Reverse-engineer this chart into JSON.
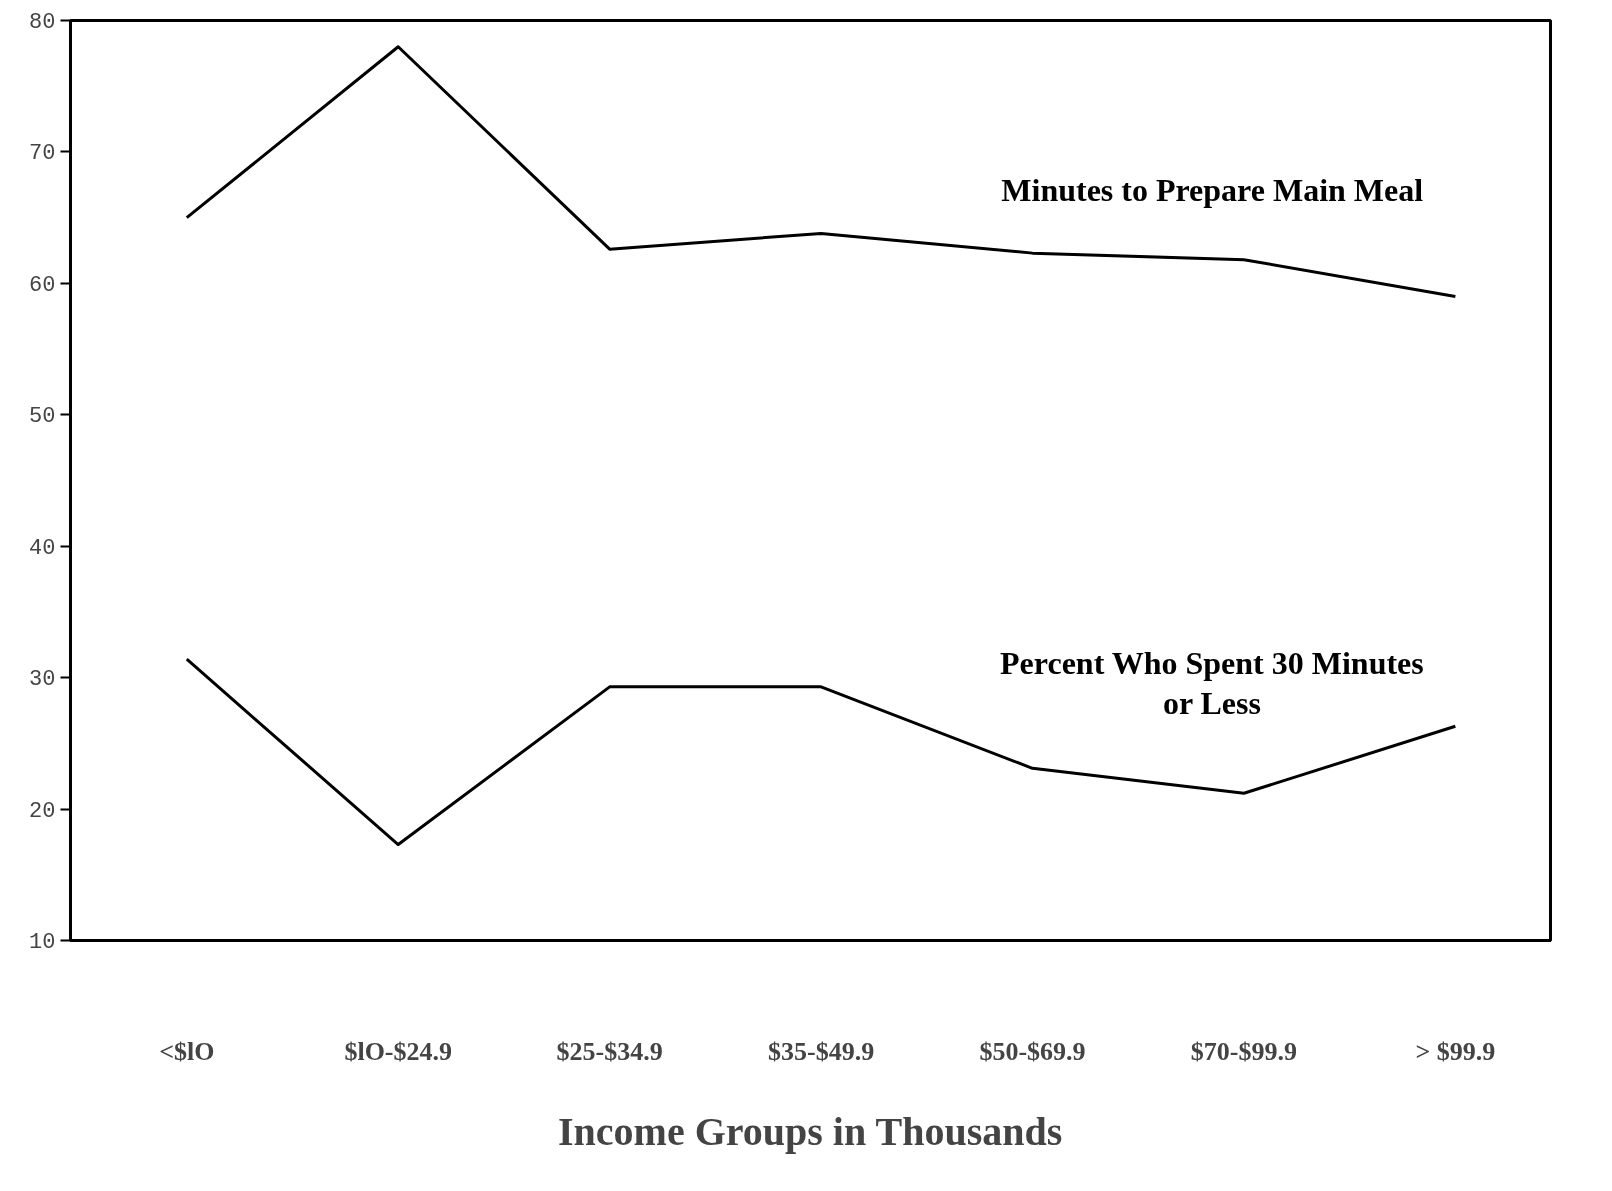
{
  "chart_data": {
    "type": "line",
    "xlabel": "Income Groups in Thousands",
    "categories": [
      "<$lO",
      "$lO-$24.9",
      "$25-$34.9",
      "$35-$49.9",
      "$50-$69.9",
      "$70-$99.9",
      "> $99.9"
    ],
    "series": [
      {
        "name": "Minutes to Prepare Main Meal",
        "color": "#000000",
        "values": [
          65.0,
          78.0,
          62.6,
          63.8,
          62.3,
          61.8,
          59.0
        ]
      },
      {
        "name": "Percent Who Spent 30 Minutes or Less",
        "color": "#000000",
        "values": [
          31.4,
          17.3,
          29.3,
          29.3,
          23.1,
          21.2,
          26.3
        ]
      }
    ],
    "ylim": [
      10,
      80
    ],
    "yticks": [
      10,
      20,
      30,
      40,
      50,
      60,
      70,
      80
    ],
    "grid": false,
    "marker": "none",
    "line_style": "solid"
  }
}
